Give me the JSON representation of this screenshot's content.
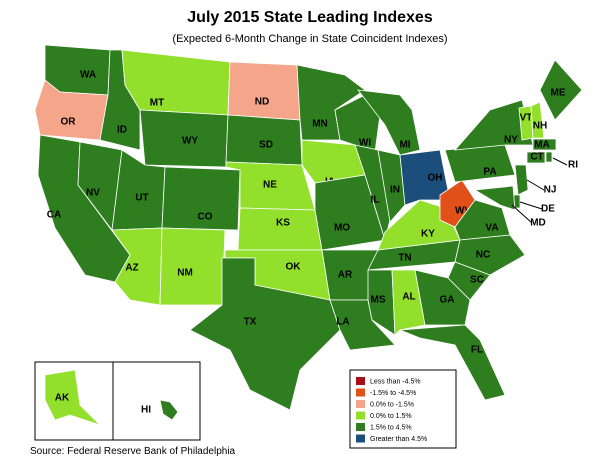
{
  "title": "July 2015 State Leading Indexes",
  "subtitle": "(Expected 6-Month Change in State Coincident Indexes)",
  "source": "Source: Federal Reserve Bank of Philadelphia",
  "legend": [
    {
      "label": "Less than -4.5%",
      "color": "#a50f15"
    },
    {
      "label": "-1.5% to -4.5%",
      "color": "#e2501a"
    },
    {
      "label": "0.0% to -1.5%",
      "color": "#f4a58a"
    },
    {
      "label": "0.0% to  1.5%",
      "color": "#92e02c"
    },
    {
      "label": "1.5% to  4.5%",
      "color": "#2e7d1f"
    },
    {
      "label": "Greater than 4.5%",
      "color": "#1b4e7a"
    }
  ],
  "states": [
    {
      "label": "WA",
      "color": "#2e7d1f"
    },
    {
      "label": "OR",
      "color": "#f4a58a"
    },
    {
      "label": "CA",
      "color": "#2e7d1f"
    },
    {
      "label": "NV",
      "color": "#2e7d1f"
    },
    {
      "label": "ID",
      "color": "#2e7d1f"
    },
    {
      "label": "MT",
      "color": "#92e02c"
    },
    {
      "label": "WY",
      "color": "#2e7d1f"
    },
    {
      "label": "UT",
      "color": "#2e7d1f"
    },
    {
      "label": "CO",
      "color": "#2e7d1f"
    },
    {
      "label": "AZ",
      "color": "#92e02c"
    },
    {
      "label": "NM",
      "color": "#92e02c"
    },
    {
      "label": "ND",
      "color": "#f4a58a"
    },
    {
      "label": "SD",
      "color": "#2e7d1f"
    },
    {
      "label": "NE",
      "color": "#92e02c"
    },
    {
      "label": "KS",
      "color": "#92e02c"
    },
    {
      "label": "OK",
      "color": "#92e02c"
    },
    {
      "label": "TX",
      "color": "#2e7d1f"
    },
    {
      "label": "MN",
      "color": "#2e7d1f"
    },
    {
      "label": "IA",
      "color": "#92e02c"
    },
    {
      "label": "MO",
      "color": "#2e7d1f"
    },
    {
      "label": "AR",
      "color": "#2e7d1f"
    },
    {
      "label": "LA",
      "color": "#2e7d1f"
    },
    {
      "label": "WI",
      "color": "#2e7d1f"
    },
    {
      "label": "IL",
      "color": "#2e7d1f"
    },
    {
      "label": "MS",
      "color": "#2e7d1f"
    },
    {
      "label": "AL",
      "color": "#92e02c"
    },
    {
      "label": "TN",
      "color": "#2e7d1f"
    },
    {
      "label": "KY",
      "color": "#92e02c"
    },
    {
      "label": "IN",
      "color": "#2e7d1f"
    },
    {
      "label": "MI",
      "color": "#2e7d1f"
    },
    {
      "label": "OH",
      "color": "#1b4e7a"
    },
    {
      "label": "WV",
      "color": "#e2501a"
    },
    {
      "label": "VA",
      "color": "#2e7d1f"
    },
    {
      "label": "NC",
      "color": "#2e7d1f"
    },
    {
      "label": "SC",
      "color": "#2e7d1f"
    },
    {
      "label": "GA",
      "color": "#2e7d1f"
    },
    {
      "label": "FL",
      "color": "#2e7d1f"
    },
    {
      "label": "PA",
      "color": "#2e7d1f"
    },
    {
      "label": "NY",
      "color": "#2e7d1f"
    },
    {
      "label": "ME",
      "color": "#2e7d1f"
    },
    {
      "label": "VT",
      "color": "#92e02c"
    },
    {
      "label": "NH",
      "color": "#92e02c"
    },
    {
      "label": "MA",
      "color": "#2e7d1f"
    },
    {
      "label": "CT",
      "color": "#2e7d1f"
    },
    {
      "label": "RI",
      "color": "#2e7d1f"
    },
    {
      "label": "NJ",
      "color": "#2e7d1f"
    },
    {
      "label": "DE",
      "color": "#2e7d1f"
    },
    {
      "label": "MD",
      "color": "#2e7d1f"
    },
    {
      "label": "AK",
      "color": "#92e02c"
    },
    {
      "label": "HI",
      "color": "#2e7d1f"
    }
  ]
}
